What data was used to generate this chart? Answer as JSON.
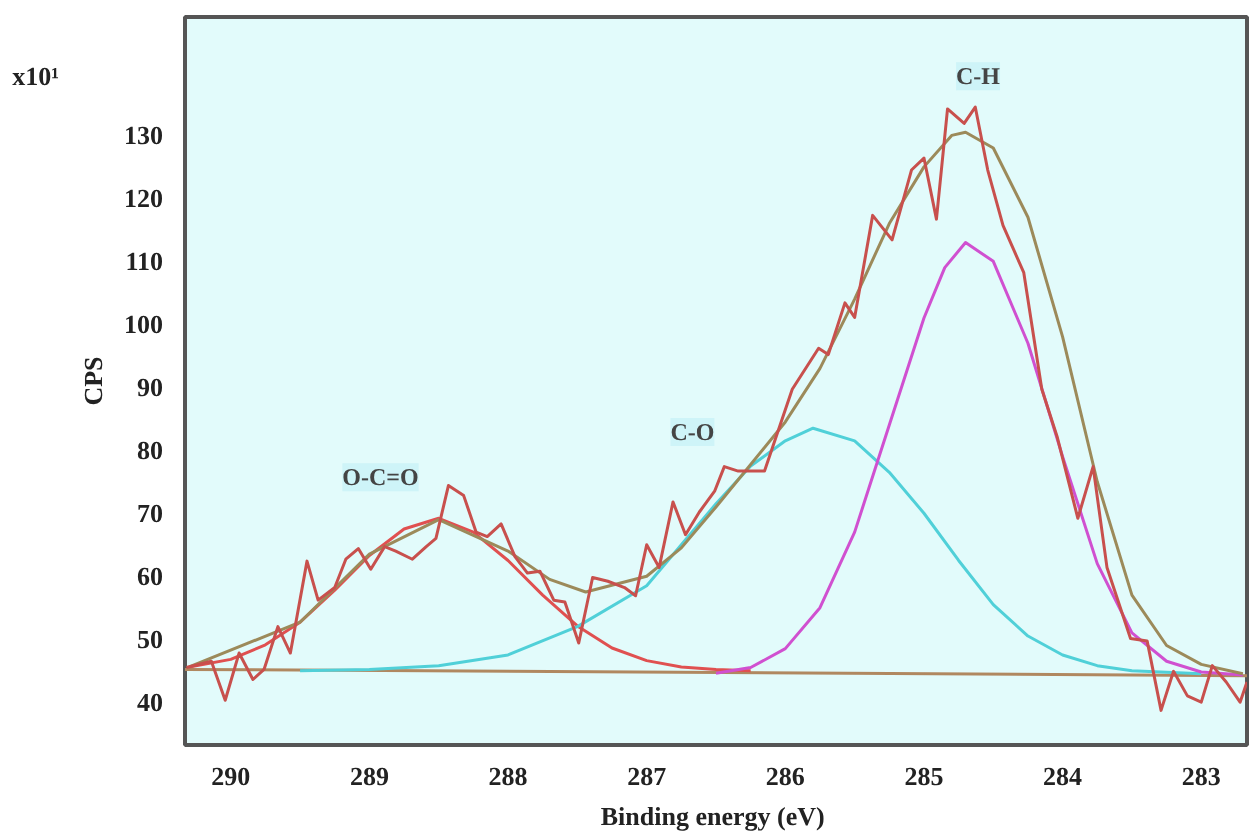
{
  "chart_data": {
    "type": "line",
    "xlabel": "Binding  energy (eV)",
    "ylabel": "CPS",
    "xlim": [
      290.33,
      282.67
    ],
    "ylim": [
      33.2,
      148.8
    ],
    "xticks": [
      290,
      289,
      288,
      287,
      286,
      285,
      284,
      283
    ],
    "yticks": [
      40,
      50,
      60,
      70,
      80,
      90,
      100,
      110,
      120,
      130
    ],
    "annotations": [
      "x10¹",
      {
        "text": "O-C=O",
        "x": 288.92,
        "y": 75.7
      },
      {
        "text": "C-O",
        "x": 286.67,
        "y": 82.9
      },
      {
        "text": "C-H",
        "x": 284.61,
        "y": 139.4
      }
    ],
    "series": [
      {
        "color": "#b08860",
        "x": [
          290.33,
          282.67
        ],
        "values": [
          45.2,
          44.2
        ]
      },
      {
        "color": "#e05050",
        "x": [
          290.3,
          290.0,
          289.75,
          289.5,
          289.25,
          289.0,
          288.75,
          288.5,
          288.25,
          288.0,
          287.75,
          287.5,
          287.25,
          287.0,
          286.75,
          286.5,
          286.25
        ],
        "values": [
          45.6,
          46.8,
          49.1,
          52.7,
          57.8,
          63.3,
          67.5,
          69.2,
          67.0,
          62.5,
          57.0,
          52.1,
          48.6,
          46.6,
          45.6,
          45.2,
          45.0
        ]
      },
      {
        "color": "#50d0d8",
        "x": [
          289.5,
          289.0,
          288.5,
          288.0,
          287.5,
          287.0,
          286.75,
          286.5,
          286.25,
          286.0,
          285.8,
          285.5,
          285.25,
          285.0,
          284.75,
          284.5,
          284.25,
          284.0,
          283.75,
          283.5,
          283.0
        ],
        "values": [
          45.0,
          45.2,
          45.8,
          47.5,
          52.0,
          58.5,
          65.0,
          71.5,
          77.5,
          81.5,
          83.5,
          81.5,
          76.5,
          70.0,
          62.5,
          55.5,
          50.5,
          47.5,
          45.8,
          45.0,
          44.5
        ]
      },
      {
        "color": "#d050d0",
        "x": [
          286.5,
          286.25,
          286.0,
          285.75,
          285.5,
          285.25,
          285.0,
          284.85,
          284.7,
          284.5,
          284.25,
          284.0,
          283.75,
          283.5,
          283.25,
          283.0,
          282.7
        ],
        "values": [
          44.6,
          45.5,
          48.5,
          55.0,
          67.0,
          84.0,
          101.0,
          109.0,
          113.0,
          110.0,
          97.0,
          79.0,
          62.0,
          51.0,
          46.5,
          44.8,
          44.3
        ]
      },
      {
        "color": "#9c8a5a",
        "x": [
          290.3,
          289.5,
          289.0,
          288.5,
          288.0,
          287.7,
          287.44,
          287.0,
          286.75,
          286.5,
          286.0,
          285.75,
          285.5,
          285.25,
          285.0,
          284.8,
          284.7,
          284.5,
          284.25,
          284.0,
          283.75,
          283.5,
          283.25,
          283.0,
          282.7
        ],
        "values": [
          45.6,
          52.7,
          63.5,
          69.0,
          64.0,
          59.5,
          57.5,
          60.0,
          64.5,
          71.0,
          84.5,
          93.0,
          104.0,
          116.0,
          125.0,
          130.0,
          130.5,
          128.0,
          117.0,
          98.0,
          75.0,
          57.0,
          49.0,
          46.0,
          44.5
        ]
      },
      {
        "color": "#c8504d",
        "x": [
          290.32,
          290.14,
          290.04,
          289.94,
          289.84,
          289.76,
          289.66,
          289.57,
          289.45,
          289.37,
          289.25,
          289.17,
          289.08,
          288.99,
          288.89,
          288.81,
          288.69,
          288.59,
          288.52,
          288.43,
          288.32,
          288.23,
          288.15,
          288.05,
          287.95,
          287.86,
          287.77,
          287.67,
          287.59,
          287.49,
          287.39,
          287.28,
          287.16,
          287.08,
          287.0,
          286.91,
          286.81,
          286.72,
          286.62,
          286.51,
          286.44,
          286.34,
          286.15,
          285.95,
          285.76,
          285.69,
          285.57,
          285.5,
          285.37,
          285.23,
          285.09,
          285.0,
          284.91,
          284.83,
          284.71,
          284.63,
          284.54,
          284.43,
          284.28,
          284.15,
          284.04,
          283.89,
          283.78,
          283.68,
          283.51,
          283.39,
          283.29,
          283.2,
          283.1,
          283.0,
          282.92,
          282.82,
          282.72,
          282.67
        ],
        "values": [
          45.5,
          46.5,
          40.3,
          47.8,
          43.6,
          45.2,
          52.0,
          47.8,
          62.4,
          56.2,
          58.2,
          62.7,
          64.4,
          61.1,
          64.7,
          64.0,
          62.7,
          64.7,
          66.0,
          74.4,
          72.8,
          67.0,
          66.3,
          68.3,
          63.1,
          60.5,
          60.8,
          56.2,
          55.9,
          49.4,
          59.8,
          59.2,
          58.2,
          56.9,
          65.0,
          61.4,
          71.8,
          66.6,
          70.2,
          73.5,
          77.4,
          76.7,
          76.7,
          89.7,
          96.2,
          95.2,
          103.4,
          101.1,
          117.3,
          113.4,
          124.5,
          126.4,
          116.7,
          134.2,
          131.9,
          134.5,
          124.5,
          115.7,
          108.2,
          89.7,
          82.2,
          69.2,
          77.4,
          61.4,
          50.1,
          49.7,
          38.7,
          44.9,
          41.0,
          40.0,
          45.8,
          43.2,
          40.0,
          43.2
        ]
      }
    ]
  }
}
